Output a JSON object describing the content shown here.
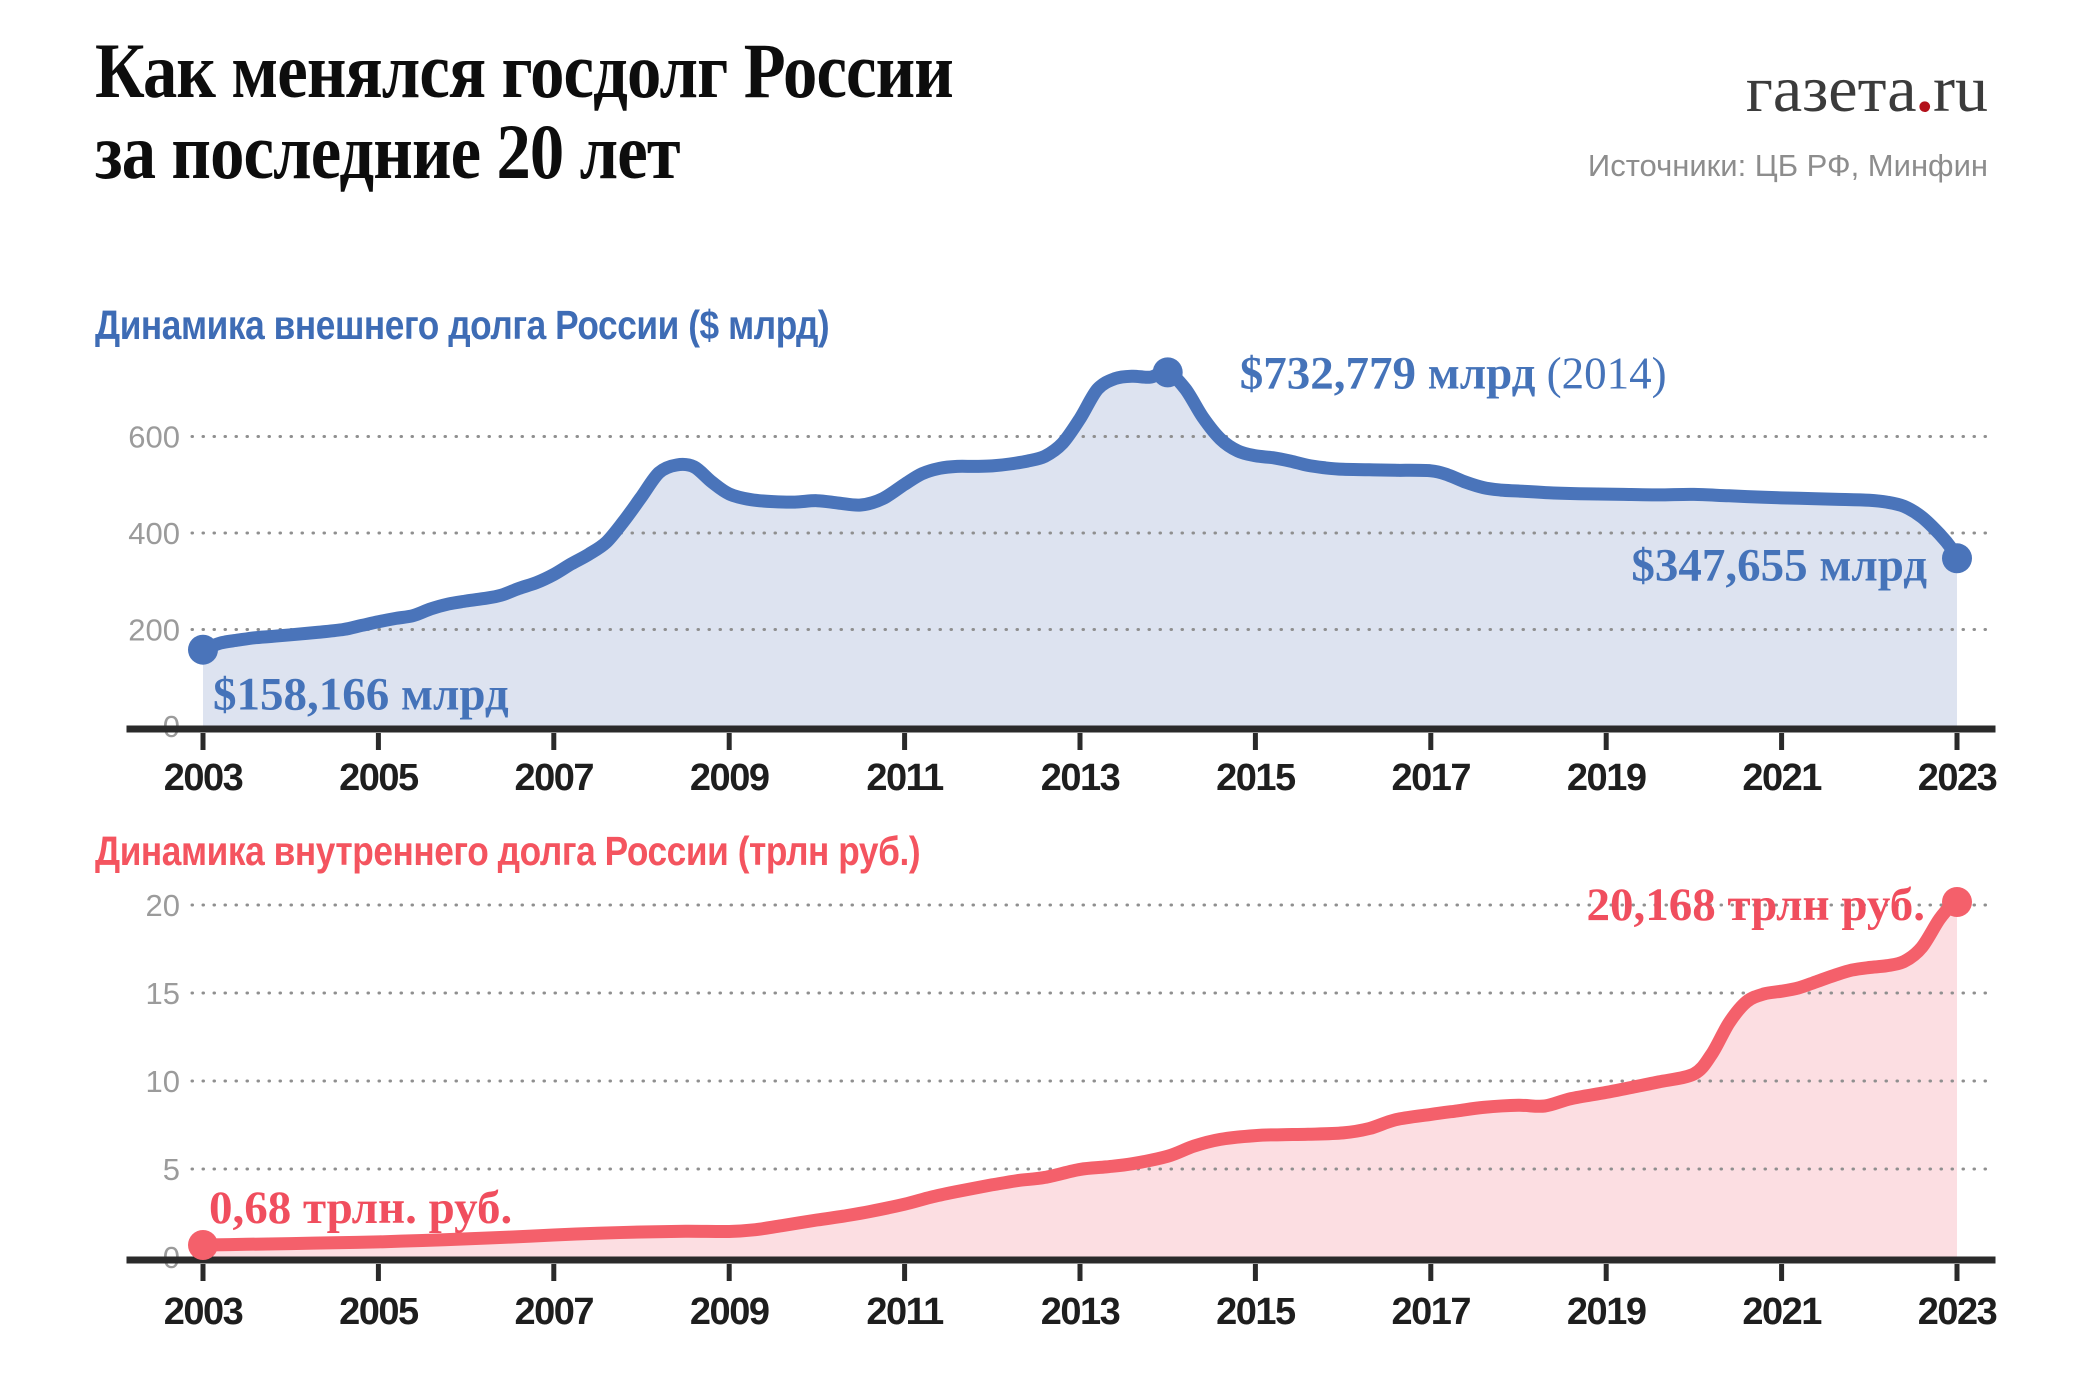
{
  "header": {
    "title_line1": "Как менялся госдолг России",
    "title_line2": "за последние 20 лет",
    "logo_text1": "газета",
    "logo_dot": ".",
    "logo_text2": "ru",
    "source": "Источники: ЦБ РФ, Минфин"
  },
  "colors": {
    "title_text": "#0d0d0d",
    "logo_text": "#3b3b3b",
    "logo_dot": "#b3111b",
    "source_text": "#8d8d8d",
    "axis": "#2a2a2a",
    "gridline": "#8f8f8f",
    "y_tick_label": "#9b9b9b",
    "x_tick_label": "#1e1e1e",
    "external_line": "#4a74ba",
    "external_fill": "#dde3f0",
    "internal_line": "#f4606b",
    "internal_fill": "#fcdee2"
  },
  "chart_data": [
    {
      "id": "external-debt",
      "type": "area",
      "title": "Динамика внешнего долга России ($ млрд)",
      "unit": "$ млрд",
      "line_color": "#4a74ba",
      "fill_color": "#dde3f0",
      "label_color": "#4573b9",
      "ylim": [
        0,
        790
      ],
      "y_ticks": [
        0,
        200,
        400,
        600
      ],
      "x_ticks": [
        2003,
        2005,
        2007,
        2009,
        2011,
        2013,
        2015,
        2017,
        2019,
        2021,
        2023
      ],
      "grid": true,
      "legend": "none",
      "annotations": [
        {
          "label": "$158,166 млрд",
          "suffix": "",
          "year": 2003,
          "value": 158.166
        },
        {
          "label": "$732,779 млрд",
          "suffix": " (2014)",
          "year": 2014,
          "value": 732.779
        },
        {
          "label": "$347,655 млрд",
          "suffix": "",
          "year": 2023,
          "value": 347.655
        }
      ],
      "points": [
        [
          2003,
          158.2
        ],
        [
          2003.2,
          172
        ],
        [
          2003.4,
          178
        ],
        [
          2003.6,
          183
        ],
        [
          2003.8,
          186
        ],
        [
          2004,
          189
        ],
        [
          2004.3,
          194
        ],
        [
          2004.6,
          200
        ],
        [
          2004.8,
          208
        ],
        [
          2005,
          216
        ],
        [
          2005.2,
          223
        ],
        [
          2005.4,
          229
        ],
        [
          2005.6,
          243
        ],
        [
          2005.8,
          253
        ],
        [
          2006,
          259
        ],
        [
          2006.2,
          264
        ],
        [
          2006.4,
          271
        ],
        [
          2006.6,
          285
        ],
        [
          2006.8,
          297
        ],
        [
          2007,
          314
        ],
        [
          2007.2,
          336
        ],
        [
          2007.4,
          356
        ],
        [
          2007.6,
          381
        ],
        [
          2007.8,
          425
        ],
        [
          2008,
          475
        ],
        [
          2008.2,
          525
        ],
        [
          2008.4,
          541
        ],
        [
          2008.6,
          537
        ],
        [
          2008.8,
          506
        ],
        [
          2009,
          481
        ],
        [
          2009.25,
          469
        ],
        [
          2009.5,
          465
        ],
        [
          2009.75,
          464
        ],
        [
          2010,
          467
        ],
        [
          2010.25,
          462
        ],
        [
          2010.5,
          458
        ],
        [
          2010.75,
          471
        ],
        [
          2011,
          501
        ],
        [
          2011.2,
          523
        ],
        [
          2011.4,
          534
        ],
        [
          2011.6,
          538
        ],
        [
          2011.8,
          538
        ],
        [
          2012,
          539
        ],
        [
          2012.2,
          543
        ],
        [
          2012.4,
          549
        ],
        [
          2012.6,
          559
        ],
        [
          2012.8,
          586
        ],
        [
          2013,
          637
        ],
        [
          2013.2,
          698
        ],
        [
          2013.4,
          720
        ],
        [
          2013.6,
          725
        ],
        [
          2013.8,
          723
        ],
        [
          2014,
          732.8
        ],
        [
          2014.2,
          699
        ],
        [
          2014.4,
          640
        ],
        [
          2014.6,
          595
        ],
        [
          2014.8,
          570
        ],
        [
          2015,
          560
        ],
        [
          2015.2,
          556
        ],
        [
          2015.4,
          549
        ],
        [
          2015.6,
          540
        ],
        [
          2015.8,
          535
        ],
        [
          2016,
          532
        ],
        [
          2016.3,
          531
        ],
        [
          2016.6,
          530
        ],
        [
          2017,
          529
        ],
        [
          2017.2,
          520
        ],
        [
          2017.4,
          505
        ],
        [
          2017.6,
          494
        ],
        [
          2017.8,
          489
        ],
        [
          2018,
          487
        ],
        [
          2018.4,
          483
        ],
        [
          2018.8,
          481
        ],
        [
          2019.2,
          480
        ],
        [
          2019.6,
          479
        ],
        [
          2020,
          480
        ],
        [
          2020.4,
          477
        ],
        [
          2020.8,
          474
        ],
        [
          2021.2,
          472
        ],
        [
          2021.6,
          470
        ],
        [
          2022,
          468
        ],
        [
          2022.2,
          464
        ],
        [
          2022.4,
          455
        ],
        [
          2022.6,
          433
        ],
        [
          2022.8,
          398
        ],
        [
          2022.95,
          365
        ],
        [
          2023,
          347.655
        ]
      ]
    },
    {
      "id": "internal-debt",
      "type": "area",
      "title": "Динамика внутреннего долга России (трлн руб.)",
      "unit": "трлн руб.",
      "line_color": "#f4606b",
      "fill_color": "#fcdee2",
      "label_color": "#f04e5e",
      "ylim": [
        0,
        22
      ],
      "y_ticks": [
        0,
        5,
        10,
        15,
        20
      ],
      "x_ticks": [
        2003,
        2005,
        2007,
        2009,
        2011,
        2013,
        2015,
        2017,
        2019,
        2021,
        2023
      ],
      "grid": true,
      "legend": "none",
      "annotations": [
        {
          "label": "0,68 трлн. руб.",
          "suffix": "",
          "year": 2003,
          "value": 0.68
        },
        {
          "label": "20,168 трлн руб.",
          "suffix": "",
          "year": 2023,
          "value": 20.168
        }
      ],
      "points": [
        [
          2003,
          0.68
        ],
        [
          2003.5,
          0.72
        ],
        [
          2004,
          0.76
        ],
        [
          2004.5,
          0.81
        ],
        [
          2005,
          0.86
        ],
        [
          2005.5,
          0.94
        ],
        [
          2006,
          1.03
        ],
        [
          2006.5,
          1.13
        ],
        [
          2007,
          1.25
        ],
        [
          2007.5,
          1.35
        ],
        [
          2008,
          1.42
        ],
        [
          2008.5,
          1.46
        ],
        [
          2009,
          1.45
        ],
        [
          2009.3,
          1.55
        ],
        [
          2009.6,
          1.78
        ],
        [
          2010,
          2.1
        ],
        [
          2010.3,
          2.32
        ],
        [
          2010.6,
          2.58
        ],
        [
          2011,
          3.0
        ],
        [
          2011.3,
          3.4
        ],
        [
          2011.6,
          3.72
        ],
        [
          2012,
          4.1
        ],
        [
          2012.3,
          4.35
        ],
        [
          2012.6,
          4.52
        ],
        [
          2013,
          4.98
        ],
        [
          2013.3,
          5.12
        ],
        [
          2013.6,
          5.3
        ],
        [
          2014,
          5.72
        ],
        [
          2014.3,
          6.3
        ],
        [
          2014.6,
          6.68
        ],
        [
          2015,
          6.9
        ],
        [
          2015.3,
          6.95
        ],
        [
          2015.6,
          6.97
        ],
        [
          2016,
          7.05
        ],
        [
          2016.3,
          7.3
        ],
        [
          2016.6,
          7.8
        ],
        [
          2017,
          8.1
        ],
        [
          2017.3,
          8.3
        ],
        [
          2017.6,
          8.5
        ],
        [
          2018,
          8.62
        ],
        [
          2018.3,
          8.58
        ],
        [
          2018.6,
          9.0
        ],
        [
          2019,
          9.35
        ],
        [
          2019.3,
          9.65
        ],
        [
          2019.6,
          9.95
        ],
        [
          2020,
          10.4
        ],
        [
          2020.2,
          11.5
        ],
        [
          2020.4,
          13.3
        ],
        [
          2020.6,
          14.5
        ],
        [
          2020.8,
          14.95
        ],
        [
          2021,
          15.1
        ],
        [
          2021.2,
          15.3
        ],
        [
          2021.4,
          15.65
        ],
        [
          2021.6,
          16.0
        ],
        [
          2021.8,
          16.3
        ],
        [
          2022,
          16.45
        ],
        [
          2022.2,
          16.55
        ],
        [
          2022.4,
          16.8
        ],
        [
          2022.6,
          17.6
        ],
        [
          2022.8,
          19.2
        ],
        [
          2022.95,
          20.05
        ],
        [
          2023,
          20.168
        ]
      ]
    }
  ]
}
